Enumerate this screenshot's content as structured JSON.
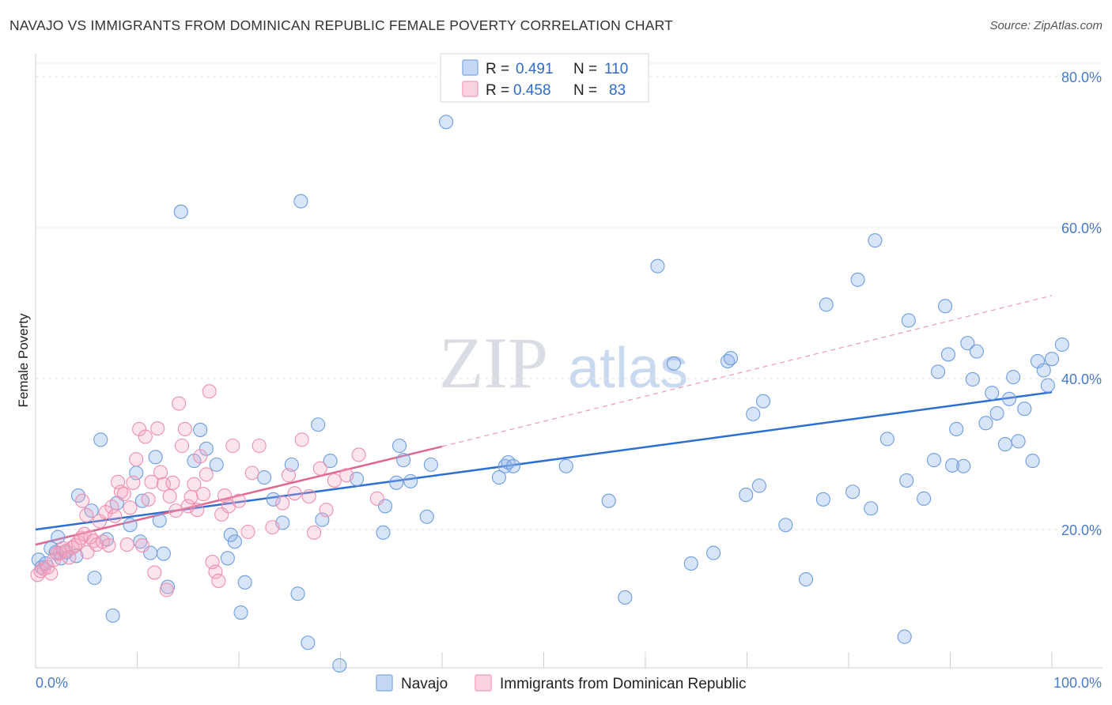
{
  "title": "NAVAJO VS IMMIGRANTS FROM DOMINICAN REPUBLIC FEMALE POVERTY CORRELATION CHART",
  "source": "Source: ZipAtlas.com",
  "watermark": {
    "zip": "ZIP",
    "atlas": "atlas"
  },
  "legend_top": [
    {
      "r_label": "R =",
      "r_value": "0.491",
      "n_label": "N =",
      "n_value": "110",
      "color": "#8fb3e8"
    },
    {
      "r_label": "R =",
      "r_value": "0.458",
      "n_label": "N =",
      "n_value": "83",
      "color": "#f4a7c0"
    }
  ],
  "legend_bottom": [
    "Navajo",
    "Immigrants from Dominican Republic"
  ],
  "chart_data": {
    "type": "scatter",
    "title": "NAVAJO VS IMMIGRANTS FROM DOMINICAN REPUBLIC FEMALE POVERTY CORRELATION CHART",
    "xlabel": "",
    "ylabel": "Female Poverty",
    "xlim": [
      0,
      100
    ],
    "ylim": [
      0,
      80
    ],
    "x_tick_labels": [
      "0.0%",
      "100.0%"
    ],
    "y_tick_labels": [
      "20.0%",
      "40.0%",
      "60.0%",
      "80.0%"
    ],
    "y_ticks": [
      20,
      40,
      60,
      80
    ],
    "grid": true,
    "legend_position": "top-center",
    "series": [
      {
        "name": "Navajo",
        "color": "#6d9de0",
        "trend": {
          "x": [
            0,
            100
          ],
          "y": [
            20.0,
            38.2
          ],
          "style": "solid"
        },
        "points": [
          [
            0.3,
            16.0
          ],
          [
            0.6,
            15.0
          ],
          [
            1.0,
            15.5
          ],
          [
            1.5,
            17.5
          ],
          [
            2.0,
            17.0
          ],
          [
            2.5,
            16.2
          ],
          [
            3.0,
            17.0
          ],
          [
            2.2,
            19.0
          ],
          [
            4.0,
            16.5
          ],
          [
            4.2,
            24.5
          ],
          [
            5.5,
            22.5
          ],
          [
            5.8,
            13.6
          ],
          [
            6.4,
            31.9
          ],
          [
            7.0,
            18.7
          ],
          [
            7.6,
            8.6
          ],
          [
            8.0,
            23.5
          ],
          [
            9.3,
            20.6
          ],
          [
            9.9,
            27.5
          ],
          [
            10.3,
            18.4
          ],
          [
            10.5,
            23.8
          ],
          [
            11.3,
            16.9
          ],
          [
            11.8,
            29.6
          ],
          [
            12.2,
            21.2
          ],
          [
            12.6,
            16.8
          ],
          [
            13.0,
            12.4
          ],
          [
            14.3,
            62.1
          ],
          [
            15.6,
            29.1
          ],
          [
            16.2,
            33.2
          ],
          [
            16.8,
            30.7
          ],
          [
            17.8,
            28.6
          ],
          [
            18.9,
            16.2
          ],
          [
            19.2,
            19.3
          ],
          [
            19.6,
            18.4
          ],
          [
            20.2,
            9.0
          ],
          [
            20.6,
            13.0
          ],
          [
            22.5,
            26.9
          ],
          [
            23.4,
            24.0
          ],
          [
            24.3,
            20.9
          ],
          [
            25.2,
            28.6
          ],
          [
            25.8,
            11.5
          ],
          [
            26.1,
            63.5
          ],
          [
            26.8,
            5.0
          ],
          [
            27.8,
            33.9
          ],
          [
            28.2,
            21.3
          ],
          [
            29.0,
            29.1
          ],
          [
            29.9,
            2.0
          ],
          [
            31.6,
            26.7
          ],
          [
            34.2,
            19.6
          ],
          [
            34.4,
            23.1
          ],
          [
            35.5,
            26.2
          ],
          [
            35.8,
            31.1
          ],
          [
            36.2,
            29.2
          ],
          [
            36.9,
            26.4
          ],
          [
            38.5,
            21.7
          ],
          [
            38.9,
            28.6
          ],
          [
            40.4,
            74.0
          ],
          [
            45.6,
            26.9
          ],
          [
            46.2,
            28.4
          ],
          [
            46.5,
            28.9
          ],
          [
            47.0,
            28.4
          ],
          [
            52.2,
            28.4
          ],
          [
            56.4,
            23.8
          ],
          [
            58.0,
            11.0
          ],
          [
            61.2,
            54.9
          ],
          [
            62.8,
            42.0
          ],
          [
            64.5,
            15.5
          ],
          [
            66.7,
            16.9
          ],
          [
            68.1,
            42.3
          ],
          [
            68.4,
            42.7
          ],
          [
            69.9,
            24.6
          ],
          [
            70.6,
            35.3
          ],
          [
            71.2,
            25.8
          ],
          [
            71.6,
            37.0
          ],
          [
            73.8,
            20.6
          ],
          [
            75.8,
            13.4
          ],
          [
            77.5,
            24.0
          ],
          [
            77.8,
            49.8
          ],
          [
            80.4,
            25.0
          ],
          [
            80.9,
            53.1
          ],
          [
            82.2,
            22.8
          ],
          [
            82.6,
            58.3
          ],
          [
            83.8,
            32.0
          ],
          [
            85.5,
            5.8
          ],
          [
            85.7,
            26.5
          ],
          [
            85.9,
            47.7
          ],
          [
            87.4,
            24.1
          ],
          [
            88.4,
            29.2
          ],
          [
            88.8,
            40.9
          ],
          [
            89.5,
            49.6
          ],
          [
            89.8,
            43.2
          ],
          [
            90.2,
            28.5
          ],
          [
            90.6,
            33.3
          ],
          [
            91.3,
            28.4
          ],
          [
            91.7,
            44.7
          ],
          [
            92.2,
            39.9
          ],
          [
            92.6,
            43.6
          ],
          [
            93.5,
            34.1
          ],
          [
            94.1,
            38.1
          ],
          [
            94.6,
            35.4
          ],
          [
            95.4,
            31.3
          ],
          [
            95.8,
            37.3
          ],
          [
            96.2,
            40.2
          ],
          [
            96.7,
            31.7
          ],
          [
            97.3,
            36.0
          ],
          [
            98.1,
            29.1
          ],
          [
            98.6,
            42.3
          ],
          [
            99.2,
            41.1
          ],
          [
            99.6,
            39.1
          ],
          [
            100.0,
            42.6
          ],
          [
            101.0,
            44.5
          ]
        ]
      },
      {
        "name": "Immigrants from Dominican Republic",
        "color": "#f0a0bd",
        "trend": {
          "x": [
            0,
            40
          ],
          "y": [
            18.0,
            31.0
          ],
          "style": "solid",
          "extended": {
            "x": [
              40,
              100
            ],
            "y": [
              31.0,
              51.0
            ],
            "style": "dashed"
          }
        },
        "points": [
          [
            0.2,
            14.0
          ],
          [
            0.5,
            14.5
          ],
          [
            0.8,
            14.8
          ],
          [
            1.2,
            15.0
          ],
          [
            1.5,
            14.2
          ],
          [
            1.8,
            16.0
          ],
          [
            2.1,
            16.8
          ],
          [
            2.4,
            16.9
          ],
          [
            2.7,
            17.5
          ],
          [
            3.0,
            17.2
          ],
          [
            3.3,
            16.3
          ],
          [
            3.6,
            17.6
          ],
          [
            3.9,
            17.9
          ],
          [
            4.2,
            18.3
          ],
          [
            4.5,
            18.9
          ],
          [
            4.8,
            19.4
          ],
          [
            5.1,
            17.0
          ],
          [
            5.4,
            19.0
          ],
          [
            5.7,
            18.5
          ],
          [
            6.0,
            18.0
          ],
          [
            4.6,
            23.8
          ],
          [
            5.0,
            21.9
          ],
          [
            6.3,
            21.1
          ],
          [
            6.6,
            18.4
          ],
          [
            6.9,
            22.3
          ],
          [
            7.2,
            17.9
          ],
          [
            7.5,
            23.0
          ],
          [
            7.8,
            21.8
          ],
          [
            8.1,
            26.3
          ],
          [
            8.4,
            25.0
          ],
          [
            8.7,
            24.7
          ],
          [
            9.0,
            18.0
          ],
          [
            9.3,
            22.9
          ],
          [
            9.6,
            26.2
          ],
          [
            9.9,
            29.3
          ],
          [
            10.2,
            33.3
          ],
          [
            10.5,
            17.9
          ],
          [
            10.8,
            32.3
          ],
          [
            11.1,
            24.0
          ],
          [
            11.4,
            26.3
          ],
          [
            11.7,
            14.3
          ],
          [
            12.0,
            33.4
          ],
          [
            12.3,
            27.6
          ],
          [
            12.6,
            26.0
          ],
          [
            12.9,
            12.0
          ],
          [
            13.2,
            24.4
          ],
          [
            13.5,
            26.2
          ],
          [
            13.8,
            22.5
          ],
          [
            14.1,
            36.7
          ],
          [
            14.4,
            31.1
          ],
          [
            14.7,
            33.3
          ],
          [
            15.0,
            23.1
          ],
          [
            15.3,
            24.3
          ],
          [
            15.6,
            26.0
          ],
          [
            15.9,
            22.6
          ],
          [
            16.2,
            29.7
          ],
          [
            16.5,
            24.7
          ],
          [
            16.8,
            27.3
          ],
          [
            17.1,
            38.3
          ],
          [
            17.4,
            15.7
          ],
          [
            17.7,
            14.4
          ],
          [
            18.0,
            13.2
          ],
          [
            18.3,
            22.0
          ],
          [
            18.6,
            24.5
          ],
          [
            19.0,
            23.1
          ],
          [
            19.4,
            31.1
          ],
          [
            20.0,
            23.8
          ],
          [
            20.9,
            19.7
          ],
          [
            21.3,
            27.5
          ],
          [
            22.0,
            31.1
          ],
          [
            23.3,
            20.3
          ],
          [
            24.3,
            23.5
          ],
          [
            24.9,
            27.2
          ],
          [
            25.5,
            24.8
          ],
          [
            26.2,
            31.9
          ],
          [
            26.9,
            24.4
          ],
          [
            27.4,
            19.6
          ],
          [
            28.0,
            28.1
          ],
          [
            28.6,
            22.6
          ],
          [
            29.4,
            26.5
          ],
          [
            30.6,
            27.2
          ],
          [
            31.8,
            29.9
          ],
          [
            33.6,
            24.1
          ]
        ]
      }
    ]
  }
}
